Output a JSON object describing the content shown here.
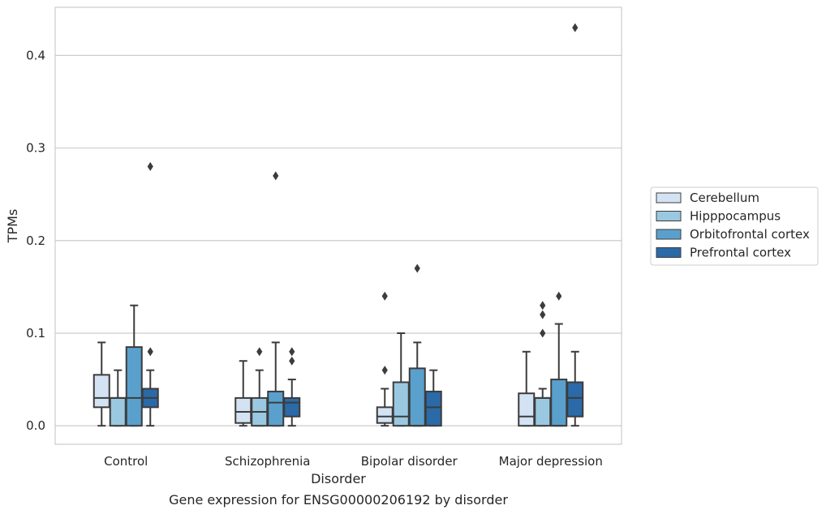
{
  "chart_data": {
    "type": "box",
    "xlabel": "Disorder",
    "ylabel": "TPMs",
    "caption": "Gene expression for ENSG00000206192 by disorder",
    "ylim": [
      -0.02,
      0.452
    ],
    "yticks": [
      0.0,
      0.1,
      0.2,
      0.3,
      0.4
    ],
    "ytick_labels": [
      "0.0",
      "0.1",
      "0.2",
      "0.3",
      "0.4"
    ],
    "grid": true,
    "legend_position": "right",
    "categories": [
      "Control",
      "Schizophrenia",
      "Bipolar disorder",
      "Major depression"
    ],
    "series": [
      {
        "name": "Cerebellum",
        "color": "#d3e3f3",
        "boxes": [
          {
            "whislo": 0.0,
            "q1": 0.02,
            "med": 0.03,
            "q3": 0.055,
            "whishi": 0.09,
            "fliers": []
          },
          {
            "whislo": 0.0,
            "q1": 0.003,
            "med": 0.015,
            "q3": 0.03,
            "whishi": 0.07,
            "fliers": []
          },
          {
            "whislo": 0.0,
            "q1": 0.003,
            "med": 0.01,
            "q3": 0.02,
            "whishi": 0.04,
            "fliers": [
              0.06,
              0.14
            ]
          },
          {
            "whislo": 0.0,
            "q1": 0.0,
            "med": 0.01,
            "q3": 0.035,
            "whishi": 0.08,
            "fliers": []
          }
        ]
      },
      {
        "name": "Hipppocampus",
        "color": "#9ac8e0",
        "boxes": [
          {
            "whislo": 0.0,
            "q1": 0.0,
            "med": 0.03,
            "q3": 0.03,
            "whishi": 0.06,
            "fliers": []
          },
          {
            "whislo": 0.0,
            "q1": 0.0,
            "med": 0.015,
            "q3": 0.03,
            "whishi": 0.06,
            "fliers": [
              0.08
            ]
          },
          {
            "whislo": 0.0,
            "q1": 0.0,
            "med": 0.01,
            "q3": 0.047,
            "whishi": 0.1,
            "fliers": []
          },
          {
            "whislo": 0.0,
            "q1": 0.0,
            "med": 0.03,
            "q3": 0.03,
            "whishi": 0.04,
            "fliers": [
              0.1,
              0.12,
              0.13
            ]
          }
        ]
      },
      {
        "name": "Orbitofrontal cortex",
        "color": "#5aa0cd",
        "boxes": [
          {
            "whislo": 0.0,
            "q1": 0.0,
            "med": 0.03,
            "q3": 0.085,
            "whishi": 0.13,
            "fliers": []
          },
          {
            "whislo": 0.0,
            "q1": 0.0,
            "med": 0.025,
            "q3": 0.037,
            "whishi": 0.09,
            "fliers": [
              0.27
            ]
          },
          {
            "whislo": 0.0,
            "q1": 0.0,
            "med": 0.0,
            "q3": 0.062,
            "whishi": 0.09,
            "fliers": [
              0.17
            ]
          },
          {
            "whislo": 0.0,
            "q1": 0.0,
            "med": 0.0,
            "q3": 0.05,
            "whishi": 0.11,
            "fliers": [
              0.14
            ]
          }
        ]
      },
      {
        "name": "Prefrontal cortex",
        "color": "#2a6aa8",
        "boxes": [
          {
            "whislo": 0.0,
            "q1": 0.02,
            "med": 0.03,
            "q3": 0.04,
            "whishi": 0.06,
            "fliers": [
              0.08,
              0.28
            ]
          },
          {
            "whislo": 0.0,
            "q1": 0.01,
            "med": 0.025,
            "q3": 0.03,
            "whishi": 0.05,
            "fliers": [
              0.07,
              0.08
            ]
          },
          {
            "whislo": 0.0,
            "q1": 0.0,
            "med": 0.02,
            "q3": 0.037,
            "whishi": 0.06,
            "fliers": []
          },
          {
            "whislo": 0.0,
            "q1": 0.01,
            "med": 0.03,
            "q3": 0.047,
            "whishi": 0.08,
            "fliers": [
              0.43
            ]
          }
        ]
      }
    ]
  }
}
